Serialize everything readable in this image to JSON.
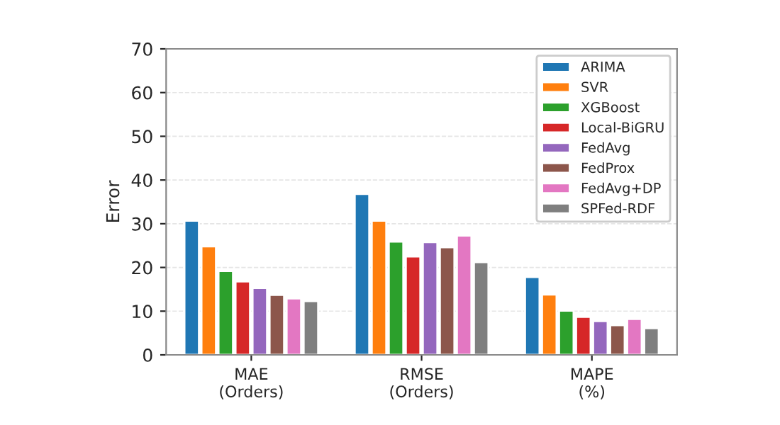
{
  "chart_data": {
    "type": "bar",
    "ylabel": "Error",
    "categories": [
      "MAE\n(Orders)",
      "RMSE\n(Orders)",
      "MAPE\n(%)"
    ],
    "series": [
      {
        "name": "ARIMA",
        "color": "#1f77b4",
        "values": [
          30.7,
          36.8,
          17.8
        ]
      },
      {
        "name": "SVR",
        "color": "#ff7f0e",
        "values": [
          24.8,
          30.7,
          13.8
        ]
      },
      {
        "name": "XGBoost",
        "color": "#2ca02c",
        "values": [
          19.2,
          25.9,
          10.1
        ]
      },
      {
        "name": "Local-BiGRU",
        "color": "#d62728",
        "values": [
          16.8,
          22.5,
          8.7
        ]
      },
      {
        "name": "FedAvg",
        "color": "#9467bd",
        "values": [
          15.3,
          25.8,
          7.7
        ]
      },
      {
        "name": "FedProx",
        "color": "#8c564b",
        "values": [
          13.7,
          24.6,
          6.8
        ]
      },
      {
        "name": "FedAvg+DP",
        "color": "#e377c2",
        "values": [
          12.9,
          27.3,
          8.2
        ]
      },
      {
        "name": "SPFed-RDF",
        "color": "#7f7f7f",
        "values": [
          12.3,
          21.2,
          6.1
        ]
      }
    ],
    "ylim": [
      0,
      70
    ],
    "yticks": [
      0,
      10,
      20,
      30,
      40,
      50,
      60,
      70
    ],
    "grid": "y",
    "legend": "top right"
  }
}
